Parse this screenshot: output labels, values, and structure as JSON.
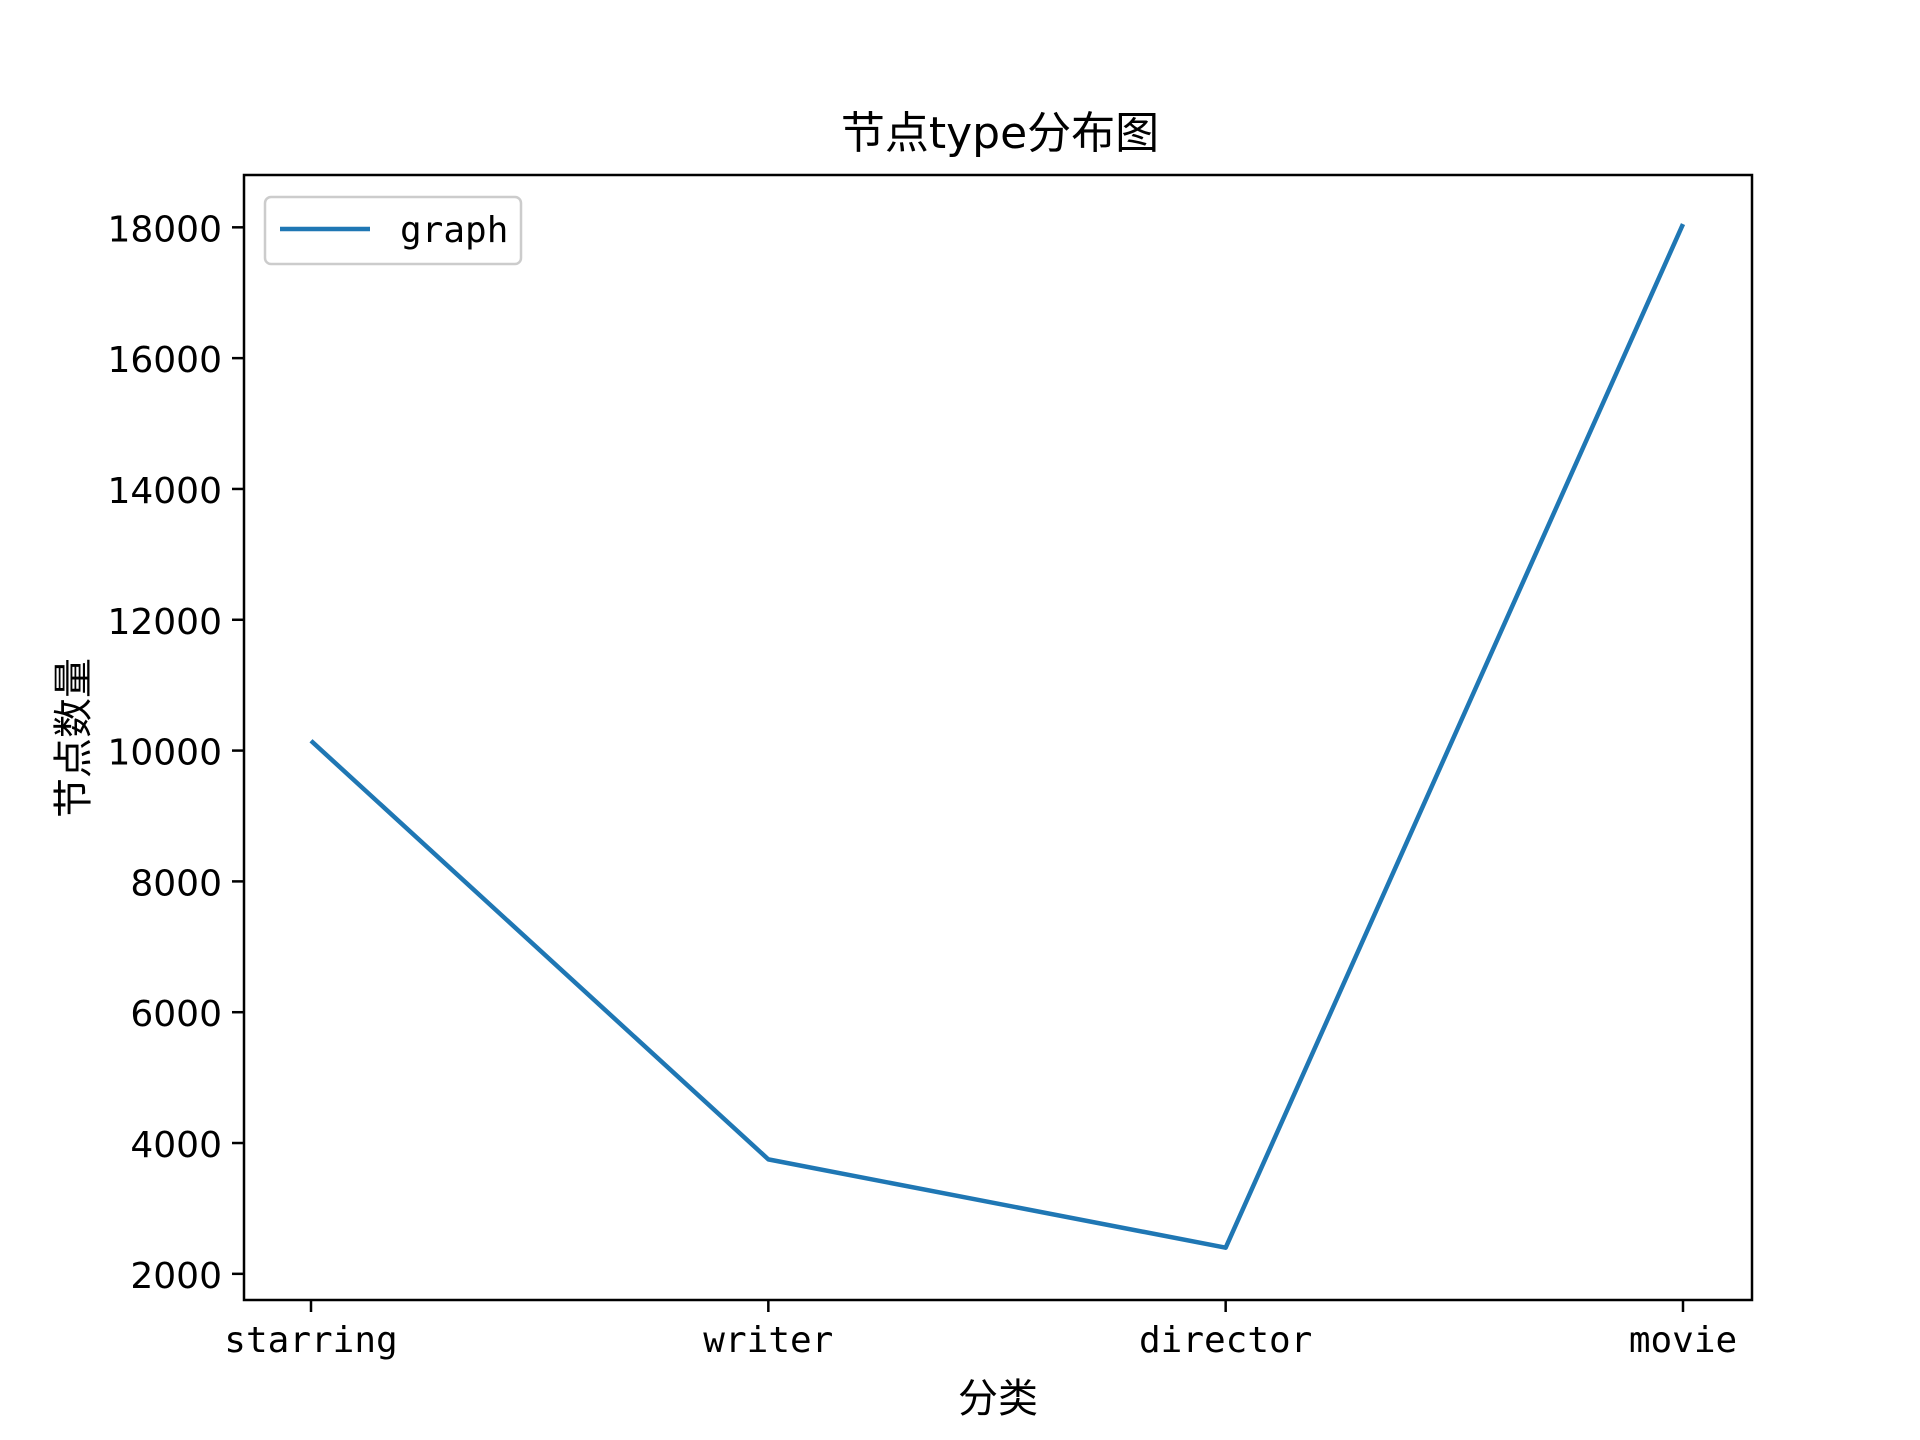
{
  "chart_data": {
    "type": "line",
    "title": "节点type分布图",
    "xlabel": "分类",
    "ylabel": "节点数量",
    "categories": [
      "starring",
      "writer",
      "director",
      "movie"
    ],
    "series": [
      {
        "name": "graph",
        "values": [
          10150,
          3750,
          2400,
          18050
        ],
        "color": "#1f77b4"
      }
    ],
    "ylim": [
      1600,
      18800
    ],
    "yticks": [
      2000,
      4000,
      6000,
      8000,
      10000,
      12000,
      14000,
      16000,
      18000
    ],
    "ytick_labels": [
      "2000",
      "4000",
      "6000",
      "8000",
      "10000",
      "12000",
      "14000",
      "16000",
      "18000"
    ],
    "legend_position": "upper left",
    "grid": false
  }
}
